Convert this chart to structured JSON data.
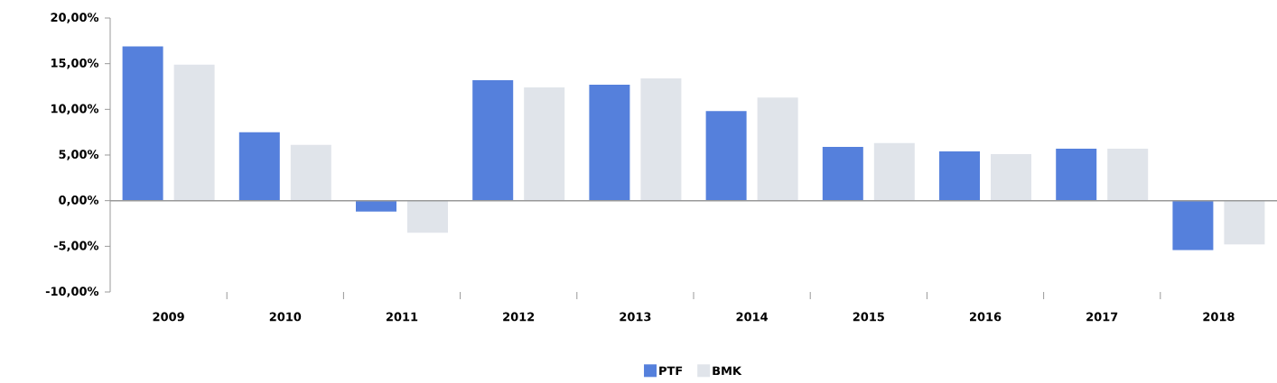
{
  "chart_data": {
    "type": "bar",
    "categories": [
      "2009",
      "2010",
      "2011",
      "2012",
      "2013",
      "2014",
      "2015",
      "2016",
      "2017",
      "2018"
    ],
    "series": [
      {
        "name": "PTF",
        "color": "#5580dc",
        "values": [
          16.9,
          7.5,
          -1.2,
          13.2,
          12.7,
          9.8,
          5.9,
          5.4,
          5.7,
          -5.4
        ]
      },
      {
        "name": "BMK",
        "color": "#e0e4ea",
        "values": [
          14.9,
          6.1,
          -3.5,
          12.4,
          13.4,
          11.3,
          6.3,
          5.1,
          5.7,
          -4.8
        ]
      }
    ],
    "ylim": [
      -10,
      20
    ],
    "yticks": [
      {
        "value": -10,
        "label": "-10,00%"
      },
      {
        "value": -5,
        "label": "-5,00%"
      },
      {
        "value": 0,
        "label": "0,00%"
      },
      {
        "value": 5,
        "label": "5,00%"
      },
      {
        "value": 10,
        "label": "10,00%"
      },
      {
        "value": 15,
        "label": "15,00%"
      },
      {
        "value": 20,
        "label": "20,00%"
      }
    ],
    "ref_lines": [
      {
        "axis": "y",
        "value": 0,
        "color": "#999999"
      }
    ],
    "legend": "bottom",
    "grid": false
  }
}
